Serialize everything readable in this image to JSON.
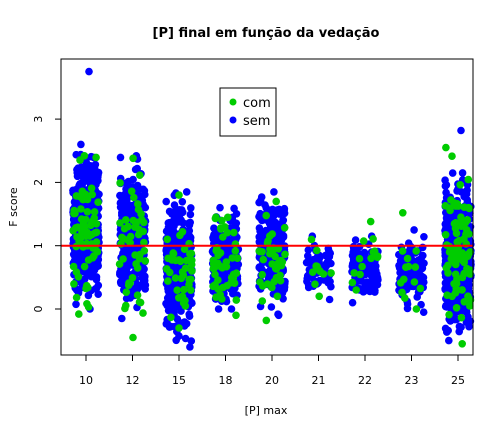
{
  "chart_data": {
    "type": "scatter",
    "title": "[P] final em função da vedação",
    "xlabel": "[P] max",
    "ylabel": "F score",
    "categories": [
      "10",
      "12",
      "15",
      "18",
      "20",
      "21",
      "22",
      "23",
      "25"
    ],
    "ylim": [
      -0.6,
      3.9
    ],
    "yticks": [
      0,
      1,
      2,
      3
    ],
    "reference_line": {
      "y": 1.0,
      "color": "#ff0000"
    },
    "legend": {
      "position": "top-center",
      "entries": [
        "com",
        "sem"
      ]
    },
    "series": [
      {
        "name": "com",
        "color": "#00cc00",
        "groups": [
          {
            "category": "10",
            "count": 70,
            "min": -0.08,
            "max": 2.42
          },
          {
            "category": "12",
            "count": 50,
            "min": -0.45,
            "max": 2.38
          },
          {
            "category": "15",
            "count": 40,
            "min": -0.3,
            "max": 1.8
          },
          {
            "category": "18",
            "count": 45,
            "min": -0.1,
            "max": 1.45
          },
          {
            "category": "20",
            "count": 40,
            "min": -0.18,
            "max": 1.7
          },
          {
            "category": "21",
            "count": 12,
            "min": 0.2,
            "max": 1.1
          },
          {
            "category": "22",
            "count": 14,
            "min": 0.3,
            "max": 1.38
          },
          {
            "category": "23",
            "count": 14,
            "min": 0.0,
            "max": 1.52
          },
          {
            "category": "25",
            "count": 90,
            "min": -0.55,
            "max": 2.55
          }
        ]
      },
      {
        "name": "sem",
        "color": "#0000ff",
        "groups": [
          {
            "category": "10",
            "count": 500,
            "min": 0.0,
            "max": 2.6,
            "outliers": [
              3.75
            ]
          },
          {
            "category": "12",
            "count": 300,
            "min": -0.15,
            "max": 2.42
          },
          {
            "category": "15",
            "count": 380,
            "min": -0.6,
            "max": 1.85
          },
          {
            "category": "18",
            "count": 260,
            "min": 0.0,
            "max": 1.6
          },
          {
            "category": "20",
            "count": 260,
            "min": -0.1,
            "max": 1.85
          },
          {
            "category": "21",
            "count": 70,
            "min": 0.15,
            "max": 1.15
          },
          {
            "category": "22",
            "count": 110,
            "min": 0.1,
            "max": 1.15
          },
          {
            "category": "23",
            "count": 130,
            "min": -0.05,
            "max": 1.25
          },
          {
            "category": "25",
            "count": 600,
            "min": -0.5,
            "max": 2.15,
            "outliers": [
              2.82
            ]
          }
        ]
      }
    ]
  }
}
